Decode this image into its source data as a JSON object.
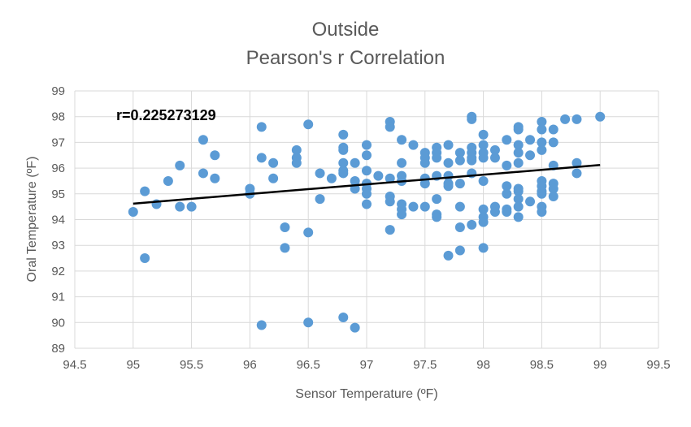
{
  "chart_data": {
    "type": "scatter",
    "title": "Outside",
    "subtitle": "Pearson's r Correlation",
    "xlabel": "Sensor Temperature (ºF)",
    "ylabel": "Oral Temperature (ºF)",
    "annotation": "r=0.225273129",
    "xlim": [
      94.5,
      99.5
    ],
    "ylim": [
      89,
      99
    ],
    "xticks": [
      "94.5",
      "95",
      "95.5",
      "96",
      "96.5",
      "97",
      "97.5",
      "98",
      "98.5",
      "99",
      "99.5"
    ],
    "yticks": [
      "89",
      "90",
      "91",
      "92",
      "93",
      "94",
      "95",
      "96",
      "97",
      "98",
      "99"
    ],
    "grid": true,
    "legend": "none",
    "marker_color": "#5B9BD5",
    "trendline": {
      "x": [
        95,
        99
      ],
      "y": [
        94.62,
        96.12
      ],
      "color": "#000000"
    },
    "points": [
      [
        95,
        94.3
      ],
      [
        95.1,
        95.1
      ],
      [
        95.1,
        92.5
      ],
      [
        95.2,
        94.6
      ],
      [
        95.3,
        95.5
      ],
      [
        95.4,
        96.1
      ],
      [
        95.4,
        94.5
      ],
      [
        95.5,
        94.5
      ],
      [
        95.6,
        97.1
      ],
      [
        95.6,
        95.8
      ],
      [
        95.7,
        96.5
      ],
      [
        95.7,
        95.6
      ],
      [
        96,
        95.2
      ],
      [
        96,
        95.0
      ],
      [
        96.1,
        97.6
      ],
      [
        96.1,
        96.4
      ],
      [
        96.1,
        89.9
      ],
      [
        96.2,
        96.2
      ],
      [
        96.2,
        95.6
      ],
      [
        96.3,
        93.7
      ],
      [
        96.3,
        92.9
      ],
      [
        96.4,
        96.7
      ],
      [
        96.4,
        96.4
      ],
      [
        96.4,
        96.2
      ],
      [
        96.5,
        97.7
      ],
      [
        96.5,
        93.5
      ],
      [
        96.5,
        90.0
      ],
      [
        96.6,
        95.8
      ],
      [
        96.6,
        94.8
      ],
      [
        96.7,
        95.6
      ],
      [
        96.8,
        97.3
      ],
      [
        96.8,
        96.8
      ],
      [
        96.8,
        96.7
      ],
      [
        96.8,
        96.2
      ],
      [
        96.8,
        95.9
      ],
      [
        96.8,
        95.8
      ],
      [
        96.8,
        90.2
      ],
      [
        96.9,
        96.2
      ],
      [
        96.9,
        95.5
      ],
      [
        96.9,
        95.2
      ],
      [
        96.9,
        89.8
      ],
      [
        97,
        96.9
      ],
      [
        97,
        96.5
      ],
      [
        97,
        95.9
      ],
      [
        97,
        95.4
      ],
      [
        97,
        95.2
      ],
      [
        97,
        95.0
      ],
      [
        97,
        94.6
      ],
      [
        97.1,
        95.7
      ],
      [
        97.2,
        97.8
      ],
      [
        97.2,
        97.6
      ],
      [
        97.2,
        95.6
      ],
      [
        97.2,
        94.9
      ],
      [
        97.2,
        94.7
      ],
      [
        97.2,
        93.6
      ],
      [
        97.3,
        97.1
      ],
      [
        97.3,
        96.2
      ],
      [
        97.3,
        95.7
      ],
      [
        97.3,
        95.5
      ],
      [
        97.3,
        94.6
      ],
      [
        97.3,
        94.4
      ],
      [
        97.3,
        94.2
      ],
      [
        97.4,
        96.9
      ],
      [
        97.4,
        94.5
      ],
      [
        97.5,
        96.6
      ],
      [
        97.5,
        96.4
      ],
      [
        97.5,
        96.2
      ],
      [
        97.5,
        95.6
      ],
      [
        97.5,
        95.4
      ],
      [
        97.5,
        94.5
      ],
      [
        97.6,
        96.8
      ],
      [
        97.6,
        96.6
      ],
      [
        97.6,
        96.4
      ],
      [
        97.6,
        95.7
      ],
      [
        97.6,
        94.8
      ],
      [
        97.6,
        94.2
      ],
      [
        97.6,
        94.1
      ],
      [
        97.7,
        96.9
      ],
      [
        97.7,
        96.2
      ],
      [
        97.7,
        95.7
      ],
      [
        97.7,
        95.4
      ],
      [
        97.7,
        95.3
      ],
      [
        97.7,
        92.6
      ],
      [
        97.8,
        96.6
      ],
      [
        97.8,
        96.3
      ],
      [
        97.8,
        95.4
      ],
      [
        97.8,
        94.5
      ],
      [
        97.8,
        93.7
      ],
      [
        97.8,
        92.8
      ],
      [
        97.9,
        98.0
      ],
      [
        97.9,
        97.9
      ],
      [
        97.9,
        96.8
      ],
      [
        97.9,
        96.6
      ],
      [
        97.9,
        96.4
      ],
      [
        97.9,
        96.3
      ],
      [
        97.9,
        95.8
      ],
      [
        97.9,
        93.8
      ],
      [
        98,
        97.3
      ],
      [
        98,
        96.9
      ],
      [
        98,
        96.6
      ],
      [
        98,
        96.4
      ],
      [
        98,
        95.5
      ],
      [
        98,
        94.4
      ],
      [
        98,
        94.1
      ],
      [
        98,
        93.9
      ],
      [
        98,
        92.9
      ],
      [
        98.1,
        96.7
      ],
      [
        98.1,
        96.4
      ],
      [
        98.1,
        94.5
      ],
      [
        98.1,
        94.3
      ],
      [
        98.2,
        97.1
      ],
      [
        98.2,
        96.1
      ],
      [
        98.2,
        95.3
      ],
      [
        98.2,
        95.0
      ],
      [
        98.2,
        94.4
      ],
      [
        98.2,
        94.3
      ],
      [
        98.3,
        97.6
      ],
      [
        98.3,
        97.5
      ],
      [
        98.3,
        96.9
      ],
      [
        98.3,
        96.6
      ],
      [
        98.3,
        96.2
      ],
      [
        98.3,
        95.2
      ],
      [
        98.3,
        95.1
      ],
      [
        98.3,
        94.8
      ],
      [
        98.3,
        94.5
      ],
      [
        98.3,
        94.1
      ],
      [
        98.4,
        97.1
      ],
      [
        98.4,
        96.5
      ],
      [
        98.4,
        94.7
      ],
      [
        98.5,
        97.8
      ],
      [
        98.5,
        97.5
      ],
      [
        98.5,
        97.0
      ],
      [
        98.5,
        96.7
      ],
      [
        98.5,
        95.5
      ],
      [
        98.5,
        95.3
      ],
      [
        98.5,
        95.1
      ],
      [
        98.5,
        95.0
      ],
      [
        98.5,
        94.5
      ],
      [
        98.5,
        94.3
      ],
      [
        98.6,
        97.5
      ],
      [
        98.6,
        97.0
      ],
      [
        98.6,
        96.1
      ],
      [
        98.6,
        95.4
      ],
      [
        98.6,
        95.2
      ],
      [
        98.6,
        94.9
      ],
      [
        98.7,
        97.9
      ],
      [
        98.8,
        97.9
      ],
      [
        98.8,
        96.2
      ],
      [
        98.8,
        95.8
      ],
      [
        99,
        98.0
      ]
    ]
  }
}
